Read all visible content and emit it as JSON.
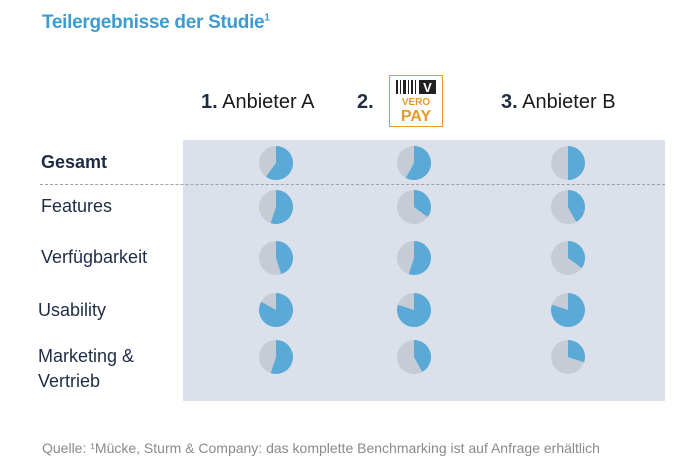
{
  "title": "Teilergebnisse der Studie",
  "title_footnote": "1",
  "columns": [
    {
      "rank": "1.",
      "name": "Anbieter A"
    },
    {
      "rank": "2.",
      "name": "VERO PAY",
      "logo": true
    },
    {
      "rank": "3.",
      "name": "Anbieter B"
    }
  ],
  "rows": [
    {
      "label": "Gesamt",
      "bold": true,
      "scores": [
        0.6,
        0.58,
        0.5
      ]
    },
    {
      "label": "Features",
      "scores": [
        0.55,
        0.35,
        0.42
      ]
    },
    {
      "label": "Verfügbarkeit",
      "scores": [
        0.45,
        0.55,
        0.35
      ]
    },
    {
      "label": "Usability",
      "scores": [
        0.83,
        0.8,
        0.8
      ]
    },
    {
      "label": "Marketing & Vertrieb",
      "scores": [
        0.55,
        0.42,
        0.3
      ]
    }
  ],
  "logo_text": {
    "top": "V",
    "mid": "VERO",
    "bottom": "PAY"
  },
  "source": "Quelle: ¹Mücke, Sturm & Company: das komplette Benchmarking ist auf Anfrage erhältlich",
  "colors": {
    "fill": "#5aa9d6",
    "empty": "#c5ccd6",
    "panel": "#dae1ea",
    "title": "#3d9bd0",
    "logo": "#e59a2c"
  }
}
